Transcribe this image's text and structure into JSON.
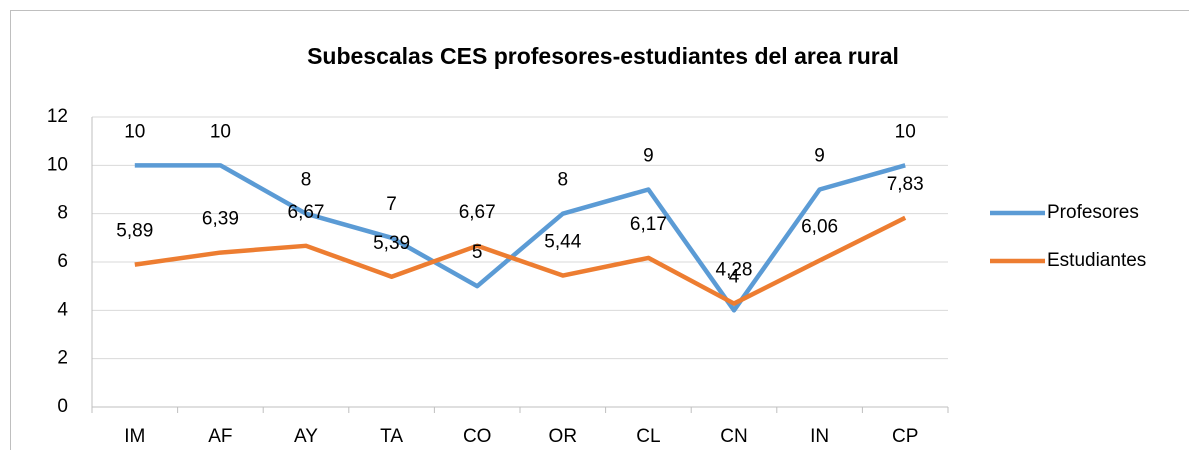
{
  "chart_data": {
    "type": "line",
    "title": "Subescalas CES profesores-estudiantes del area rural",
    "categories": [
      "IM",
      "AF",
      "AY",
      "TA",
      "CO",
      "OR",
      "CL",
      "CN",
      "IN",
      "CP"
    ],
    "series": [
      {
        "name": "Profesores",
        "color": "#5b9bd5",
        "values": [
          10,
          10,
          8,
          7,
          5,
          8,
          9,
          4,
          9,
          10
        ]
      },
      {
        "name": "Estudiantes",
        "color": "#ed7d31",
        "values": [
          5.89,
          6.39,
          6.67,
          5.39,
          6.67,
          5.44,
          6.17,
          4.28,
          6.06,
          7.83
        ],
        "value_labels": [
          "5,89",
          "6,39",
          "6,67",
          "5,39",
          "6,67",
          "5,44",
          "6,17",
          "4,28",
          "6,06",
          "7,83"
        ]
      }
    ],
    "ylim": [
      0,
      12
    ],
    "yticks": [
      0,
      2,
      4,
      6,
      8,
      10,
      12
    ],
    "grid": true,
    "legend": "right"
  }
}
